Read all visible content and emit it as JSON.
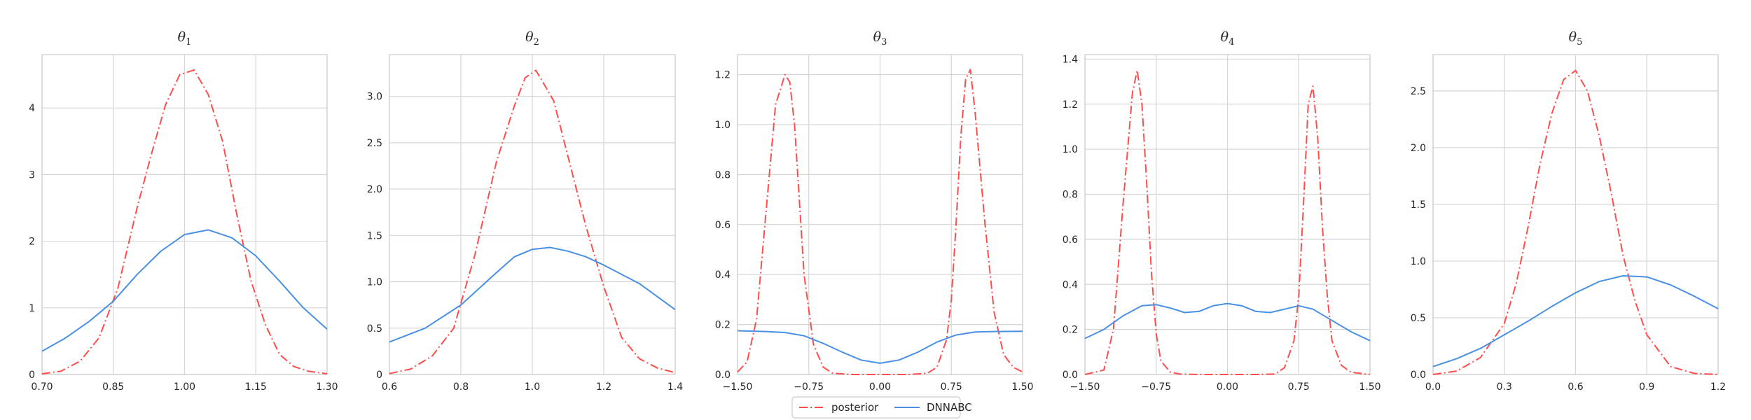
{
  "chart_data": [
    {
      "type": "line",
      "title": "θ1",
      "title_base": "θ",
      "title_sub": "1",
      "xlim": [
        0.7,
        1.3
      ],
      "ylim": [
        0,
        4.8
      ],
      "xticks": [
        0.7,
        0.85,
        1.0,
        1.15,
        1.3
      ],
      "xtick_labels": [
        "0.70",
        "0.85",
        "1.00",
        "1.15",
        "1.30"
      ],
      "yticks": [
        0,
        1,
        2,
        3,
        4
      ],
      "ytick_labels": [
        "0",
        "1",
        "2",
        "3",
        "4"
      ],
      "grid": true,
      "series": [
        {
          "name": "posterior",
          "color": "#ff4d4d",
          "style": "dashdot",
          "x": [
            0.7,
            0.74,
            0.78,
            0.82,
            0.86,
            0.9,
            0.93,
            0.96,
            0.99,
            1.02,
            1.05,
            1.08,
            1.11,
            1.14,
            1.17,
            1.2,
            1.23,
            1.26,
            1.3
          ],
          "y": [
            0.01,
            0.05,
            0.2,
            0.55,
            1.3,
            2.5,
            3.3,
            4.05,
            4.5,
            4.57,
            4.2,
            3.5,
            2.4,
            1.4,
            0.75,
            0.3,
            0.12,
            0.05,
            0.01
          ]
        },
        {
          "name": "DNNABC",
          "color": "#4a90e2",
          "style": "solid",
          "x": [
            0.7,
            0.75,
            0.8,
            0.85,
            0.9,
            0.95,
            1.0,
            1.05,
            1.1,
            1.15,
            1.2,
            1.25,
            1.3
          ],
          "y": [
            0.35,
            0.55,
            0.8,
            1.1,
            1.5,
            1.85,
            2.1,
            2.17,
            2.05,
            1.78,
            1.4,
            1.0,
            0.68
          ]
        }
      ]
    },
    {
      "type": "line",
      "title": "θ2",
      "title_base": "θ",
      "title_sub": "2",
      "xlim": [
        0.6,
        1.4
      ],
      "ylim": [
        0,
        3.45
      ],
      "xticks": [
        0.6,
        0.8,
        1.0,
        1.2,
        1.4
      ],
      "xtick_labels": [
        "0.6",
        "0.8",
        "1.0",
        "1.2",
        "1.4"
      ],
      "yticks": [
        0,
        0.5,
        1.0,
        1.5,
        2.0,
        2.5,
        3.0
      ],
      "ytick_labels": [
        "0",
        "0.5",
        "1.0",
        "1.5",
        "2.0",
        "2.5",
        "3.0"
      ],
      "grid": true,
      "series": [
        {
          "name": "posterior",
          "color": "#ff4d4d",
          "style": "dashdot",
          "x": [
            0.6,
            0.66,
            0.72,
            0.78,
            0.84,
            0.9,
            0.95,
            0.98,
            1.01,
            1.03,
            1.06,
            1.1,
            1.15,
            1.2,
            1.25,
            1.3,
            1.35,
            1.4
          ],
          "y": [
            0.01,
            0.06,
            0.2,
            0.5,
            1.3,
            2.3,
            2.9,
            3.2,
            3.28,
            3.15,
            2.95,
            2.35,
            1.6,
            0.95,
            0.4,
            0.17,
            0.07,
            0.02
          ]
        },
        {
          "name": "DNNABC",
          "color": "#4a90e2",
          "style": "solid",
          "x": [
            0.6,
            0.7,
            0.8,
            0.9,
            0.95,
            1.0,
            1.05,
            1.1,
            1.15,
            1.2,
            1.3,
            1.4
          ],
          "y": [
            0.35,
            0.5,
            0.75,
            1.1,
            1.27,
            1.35,
            1.37,
            1.33,
            1.27,
            1.18,
            0.98,
            0.7
          ]
        }
      ]
    },
    {
      "type": "line",
      "title": "θ3",
      "title_base": "θ",
      "title_sub": "3",
      "xlim": [
        -1.5,
        1.5
      ],
      "ylim": [
        0,
        1.28
      ],
      "xticks": [
        -1.5,
        -0.75,
        0.0,
        0.75,
        1.5
      ],
      "xtick_labels": [
        "−1.50",
        "−0.75",
        "0.00",
        "0.75",
        "1.50"
      ],
      "yticks": [
        0,
        0.2,
        0.4,
        0.6,
        0.8,
        1.0,
        1.2
      ],
      "ytick_labels": [
        "0.0",
        "0.2",
        "0.4",
        "0.6",
        "0.8",
        "1.0",
        "1.2"
      ],
      "grid": true,
      "series": [
        {
          "name": "posterior",
          "color": "#ff4d4d",
          "style": "dashdot",
          "x": [
            -1.5,
            -1.4,
            -1.3,
            -1.2,
            -1.1,
            -1.0,
            -0.95,
            -0.9,
            -0.85,
            -0.8,
            -0.7,
            -0.6,
            -0.5,
            -0.3,
            0.0,
            0.3,
            0.5,
            0.6,
            0.7,
            0.75,
            0.8,
            0.85,
            0.9,
            0.95,
            1.0,
            1.1,
            1.2,
            1.3,
            1.4,
            1.5
          ],
          "y": [
            0.01,
            0.05,
            0.22,
            0.65,
            1.08,
            1.2,
            1.17,
            1.0,
            0.7,
            0.4,
            0.12,
            0.03,
            0.005,
            0.0,
            0.0,
            0.0,
            0.005,
            0.03,
            0.14,
            0.3,
            0.6,
            0.95,
            1.18,
            1.22,
            1.05,
            0.62,
            0.25,
            0.08,
            0.03,
            0.01
          ]
        },
        {
          "name": "DNNABC",
          "color": "#4a90e2",
          "style": "solid",
          "x": [
            -1.5,
            -1.2,
            -1.0,
            -0.8,
            -0.6,
            -0.4,
            -0.2,
            0.0,
            0.2,
            0.4,
            0.6,
            0.8,
            1.0,
            1.2,
            1.5
          ],
          "y": [
            0.175,
            0.172,
            0.168,
            0.155,
            0.125,
            0.09,
            0.058,
            0.045,
            0.058,
            0.09,
            0.13,
            0.158,
            0.17,
            0.172,
            0.173
          ]
        }
      ]
    },
    {
      "type": "line",
      "title": "θ4",
      "title_base": "θ",
      "title_sub": "4",
      "xlim": [
        -1.5,
        1.5
      ],
      "ylim": [
        0,
        1.42
      ],
      "xticks": [
        -1.5,
        -0.75,
        0.0,
        0.75,
        1.5
      ],
      "xtick_labels": [
        "−1.50",
        "−0.75",
        "0.00",
        "0.75",
        "1.50"
      ],
      "yticks": [
        0,
        0.2,
        0.4,
        0.6,
        0.8,
        1.0,
        1.2,
        1.4
      ],
      "ytick_labels": [
        "0.0",
        "0.2",
        "0.4",
        "0.6",
        "0.8",
        "1.0",
        "1.2",
        "1.4"
      ],
      "grid": true,
      "series": [
        {
          "name": "posterior",
          "color": "#ff4d4d",
          "style": "dashdot",
          "x": [
            -1.5,
            -1.3,
            -1.2,
            -1.1,
            -1.0,
            -0.95,
            -0.9,
            -0.85,
            -0.8,
            -0.75,
            -0.7,
            -0.6,
            -0.5,
            -0.3,
            0.0,
            0.3,
            0.5,
            0.6,
            0.7,
            0.75,
            0.8,
            0.85,
            0.9,
            0.95,
            1.0,
            1.05,
            1.1,
            1.2,
            1.3,
            1.5
          ],
          "y": [
            0.0,
            0.02,
            0.2,
            0.75,
            1.25,
            1.35,
            1.2,
            0.85,
            0.45,
            0.18,
            0.06,
            0.01,
            0.002,
            0.0,
            0.0,
            0.0,
            0.002,
            0.03,
            0.15,
            0.35,
            0.75,
            1.2,
            1.28,
            1.05,
            0.65,
            0.35,
            0.15,
            0.04,
            0.01,
            0.0
          ]
        },
        {
          "name": "DNNABC",
          "color": "#4a90e2",
          "style": "solid",
          "x": [
            -1.5,
            -1.3,
            -1.1,
            -0.9,
            -0.75,
            -0.6,
            -0.45,
            -0.3,
            -0.15,
            0.0,
            0.15,
            0.3,
            0.45,
            0.6,
            0.75,
            0.9,
            1.1,
            1.3,
            1.5
          ],
          "y": [
            0.16,
            0.2,
            0.26,
            0.305,
            0.31,
            0.295,
            0.275,
            0.28,
            0.305,
            0.315,
            0.305,
            0.28,
            0.275,
            0.29,
            0.305,
            0.29,
            0.24,
            0.19,
            0.15
          ]
        }
      ]
    },
    {
      "type": "line",
      "title": "θ5",
      "title_base": "θ",
      "title_sub": "5",
      "xlim": [
        0.0,
        1.2
      ],
      "ylim": [
        0,
        2.82
      ],
      "xticks": [
        0.0,
        0.3,
        0.6,
        0.9,
        1.2
      ],
      "xtick_labels": [
        "0.0",
        "0.3",
        "0.6",
        "0.9",
        "1.2"
      ],
      "yticks": [
        0,
        0.5,
        1.0,
        1.5,
        2.0,
        2.5
      ],
      "ytick_labels": [
        "0.0",
        "0.5",
        "1.0",
        "1.5",
        "2.0",
        "2.5"
      ],
      "grid": true,
      "series": [
        {
          "name": "posterior",
          "color": "#ff4d4d",
          "style": "dashdot",
          "x": [
            0.0,
            0.1,
            0.2,
            0.3,
            0.35,
            0.4,
            0.45,
            0.5,
            0.55,
            0.6,
            0.65,
            0.7,
            0.75,
            0.8,
            0.85,
            0.9,
            1.0,
            1.1,
            1.2
          ],
          "y": [
            0.0,
            0.03,
            0.15,
            0.45,
            0.8,
            1.3,
            1.85,
            2.3,
            2.6,
            2.68,
            2.5,
            2.1,
            1.6,
            1.05,
            0.65,
            0.35,
            0.07,
            0.01,
            0.0
          ]
        },
        {
          "name": "DNNABC",
          "color": "#4a90e2",
          "style": "solid",
          "x": [
            0.0,
            0.1,
            0.2,
            0.3,
            0.4,
            0.5,
            0.6,
            0.7,
            0.8,
            0.9,
            1.0,
            1.1,
            1.2
          ],
          "y": [
            0.07,
            0.14,
            0.23,
            0.35,
            0.47,
            0.6,
            0.72,
            0.82,
            0.87,
            0.86,
            0.79,
            0.69,
            0.58
          ]
        }
      ]
    }
  ],
  "legend": {
    "placement": "bottom-center",
    "entries": [
      {
        "name": "posterior",
        "color": "#ff4d4d",
        "style": "dashdot"
      },
      {
        "name": "DNNABC",
        "color": "#4a90e2",
        "style": "solid"
      }
    ]
  }
}
